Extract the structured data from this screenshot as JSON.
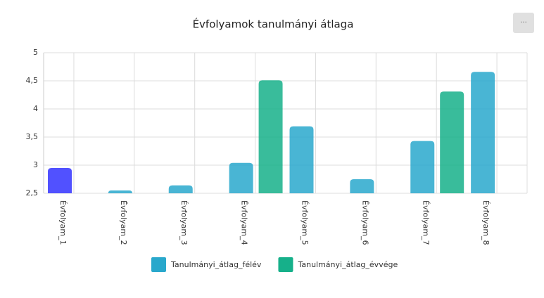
{
  "menu_button": "···",
  "chart_data": {
    "type": "bar",
    "title": "Évfolyamok tanulmányi átlaga",
    "categories": [
      "Évfolyam_1",
      "Évfolyam_2",
      "Évfolyam_3",
      "Évfolyam_4",
      "Évfolyam_5",
      "Évfolyam_6",
      "Évfolyam_7",
      "Évfolyam_8"
    ],
    "series": [
      {
        "name": "Tanulmányi_átlag_félév",
        "color": "#29a8cc",
        "colors": [
          "#3333ff",
          "#29a8cc",
          "#29a8cc",
          "#29a8cc",
          "#29a8cc",
          "#29a8cc",
          "#29a8cc",
          "#29a8cc"
        ],
        "values": [
          2.95,
          2.55,
          2.64,
          3.04,
          3.69,
          2.75,
          3.43,
          4.66
        ]
      },
      {
        "name": "Tanulmányi_átlag_évvége",
        "color": "#16b08a",
        "values": [
          null,
          null,
          null,
          4.51,
          null,
          null,
          4.31,
          null
        ]
      }
    ],
    "ylim": [
      2.5,
      5
    ],
    "yticks": [
      {
        "value": 2.5,
        "label": "2,5"
      },
      3,
      {
        "value": 3.5,
        "label": "3,5"
      },
      4,
      {
        "value": 4.5,
        "label": "4,5"
      },
      5
    ],
    "grid": true,
    "legend": "bottom"
  }
}
